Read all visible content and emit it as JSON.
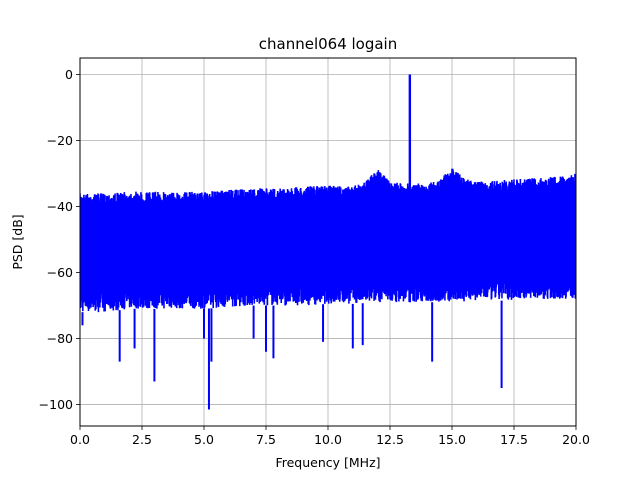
{
  "chart_data": {
    "type": "line",
    "title": "channel064 logain",
    "xlabel": "Frequency [MHz]",
    "ylabel": "PSD [dB]",
    "xlim": [
      0,
      20
    ],
    "ylim": [
      -106.5,
      5
    ],
    "xticks": [
      0,
      2.5,
      5,
      7.5,
      10,
      12.5,
      15,
      17.5,
      20
    ],
    "xtick_labels": [
      "0.0",
      "2.5",
      "5.0",
      "7.5",
      "10.0",
      "12.5",
      "15.0",
      "17.5",
      "20.0"
    ],
    "yticks": [
      0,
      -20,
      -40,
      -60,
      -80,
      -100
    ],
    "ytick_labels": [
      "0",
      "−20",
      "−40",
      "−60",
      "−80",
      "−100"
    ],
    "grid": true,
    "series": [
      {
        "color": "#0000ff",
        "upper_envelope": {
          "x": [
            0,
            1,
            2,
            3,
            4,
            5,
            6,
            7,
            8,
            9,
            10,
            11,
            11.5,
            12,
            12.5,
            13,
            14,
            14.5,
            15,
            15.5,
            16,
            17,
            18,
            19,
            20
          ],
          "y": [
            -36,
            -36,
            -35.5,
            -35.5,
            -35.5,
            -35.5,
            -35,
            -34.5,
            -34.5,
            -34,
            -33.5,
            -34,
            -32,
            -28.5,
            -32.5,
            -33,
            -33,
            -32,
            -28,
            -31.5,
            -32.5,
            -32,
            -31.5,
            -31,
            -30
          ]
        },
        "lower_envelope": {
          "x": [
            0,
            1,
            2,
            3,
            4,
            5,
            6,
            7,
            8,
            9,
            10,
            11,
            12,
            13,
            14,
            15,
            16,
            17,
            18,
            19,
            20
          ],
          "y": [
            -72,
            -72,
            -71,
            -71,
            -71,
            -71,
            -70.5,
            -70,
            -70,
            -70,
            -69.5,
            -69.5,
            -69,
            -69,
            -69,
            -69,
            -68.5,
            -68.5,
            -68,
            -68,
            -68
          ]
        },
        "peak": {
          "x": 13.3,
          "y": 0
        },
        "dips": [
          {
            "x": 0.1,
            "y": -76
          },
          {
            "x": 1.6,
            "y": -87
          },
          {
            "x": 2.2,
            "y": -83
          },
          {
            "x": 3.0,
            "y": -93
          },
          {
            "x": 5.0,
            "y": -80
          },
          {
            "x": 5.2,
            "y": -101.5
          },
          {
            "x": 5.3,
            "y": -87
          },
          {
            "x": 7.0,
            "y": -80
          },
          {
            "x": 7.5,
            "y": -84
          },
          {
            "x": 7.8,
            "y": -86
          },
          {
            "x": 9.8,
            "y": -81
          },
          {
            "x": 11.0,
            "y": -83
          },
          {
            "x": 11.4,
            "y": -82
          },
          {
            "x": 14.2,
            "y": -87
          },
          {
            "x": 17.0,
            "y": -95
          }
        ]
      }
    ]
  }
}
